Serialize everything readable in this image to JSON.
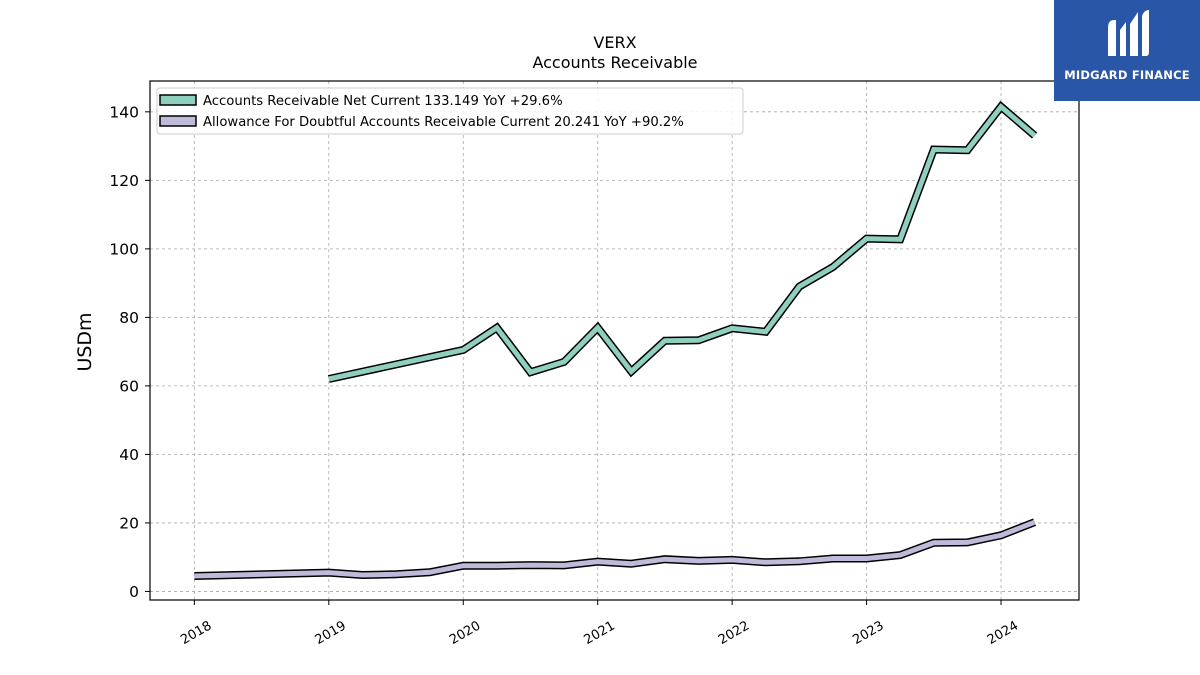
{
  "chart_data": {
    "type": "line",
    "title": "VERX",
    "subtitle": "Accounts Receivable",
    "xlabel": "",
    "ylabel": "USDm",
    "xlim": [
      2017.67,
      2024.58
    ],
    "ylim": [
      -2.5,
      149
    ],
    "yticks": [
      0,
      20,
      40,
      60,
      80,
      100,
      120,
      140
    ],
    "xticks": [
      2018,
      2019,
      2020,
      2021,
      2022,
      2023,
      2024
    ],
    "xtick_labels": [
      "2018",
      "2019",
      "2020",
      "2021",
      "2022",
      "2023",
      "2024"
    ],
    "grid": true,
    "legend_position": "top-left",
    "series": [
      {
        "name": "Accounts Receivable Net Current  133.149 YoY +29.6%",
        "color": "#8ecfc0",
        "x": [
          2019.0,
          2020.0,
          2020.25,
          2020.5,
          2020.75,
          2021.0,
          2021.25,
          2021.5,
          2021.75,
          2022.0,
          2022.25,
          2022.5,
          2022.75,
          2023.0,
          2023.25,
          2023.5,
          2023.75,
          2024.0,
          2024.25
        ],
        "values": [
          62.0,
          70.5,
          77.0,
          64.0,
          67.0,
          77.0,
          64.2,
          73.2,
          73.3,
          76.8,
          75.8,
          89.0,
          94.7,
          103.0,
          102.8,
          129.0,
          128.8,
          141.5,
          133.1
        ]
      },
      {
        "name": "Allowance For Doubtful Accounts Receivable Current  20.241 YoY +90.2%",
        "color": "#bdbbd9",
        "x": [
          2018.0,
          2019.0,
          2019.25,
          2019.5,
          2019.75,
          2020.0,
          2020.25,
          2020.5,
          2020.75,
          2021.0,
          2021.25,
          2021.5,
          2021.75,
          2022.0,
          2022.25,
          2022.5,
          2022.75,
          2023.0,
          2023.25,
          2023.5,
          2023.75,
          2024.0,
          2024.25
        ],
        "values": [
          4.5,
          5.5,
          4.8,
          5.0,
          5.6,
          7.5,
          7.5,
          7.7,
          7.6,
          8.7,
          8.1,
          9.4,
          8.9,
          9.2,
          8.5,
          8.8,
          9.6,
          9.6,
          10.6,
          14.2,
          14.3,
          16.4,
          20.2
        ]
      }
    ]
  },
  "logo": {
    "text": "MIDGARD FINANCE",
    "bg_color": "#2a56a8"
  }
}
